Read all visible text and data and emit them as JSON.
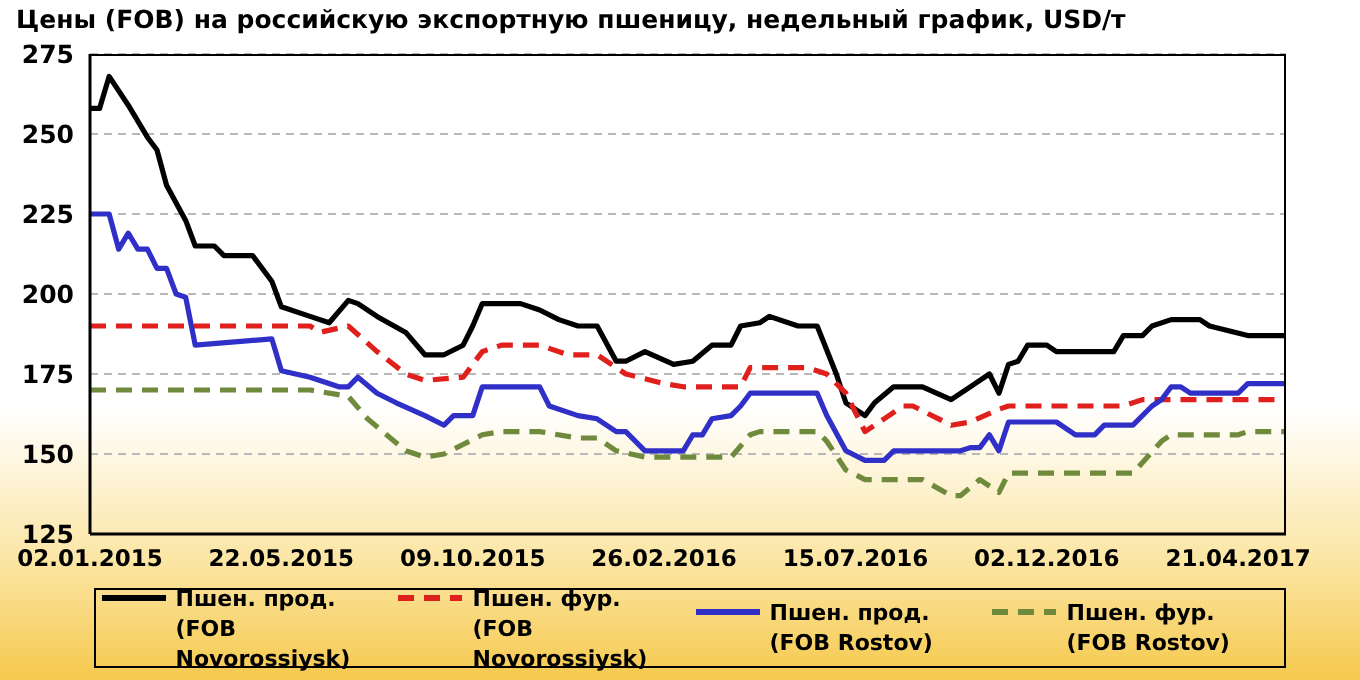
{
  "chart_data": {
    "type": "line",
    "title": "Цены (FOB) на российскую экспортную пшеницу, недельный график, USD/т",
    "xlim": [
      "2015-01-02",
      "2017-05-26"
    ],
    "xticks": [
      {
        "value": "2015-01-02",
        "label": "02.01.2015"
      },
      {
        "value": "2015-05-22",
        "label": "22.05.2015"
      },
      {
        "value": "2015-10-09",
        "label": "09.10.2015"
      },
      {
        "value": "2016-02-26",
        "label": "26.02.2016"
      },
      {
        "value": "2016-07-15",
        "label": "15.07.2016"
      },
      {
        "value": "2016-12-02",
        "label": "02.12.2016"
      },
      {
        "value": "2017-04-21",
        "label": "21.04.2017"
      }
    ],
    "ylim": [
      125,
      275
    ],
    "yticks": [
      125,
      150,
      175,
      200,
      225,
      250,
      275
    ],
    "grid": "y",
    "legend": "bottom",
    "marker": "none",
    "series": [
      {
        "name": "Пшен. прод. (FOB Novorossiysk)",
        "color": "#000000",
        "line_style": "solid",
        "x": [
          "2015-01-02",
          "2015-01-09",
          "2015-01-16",
          "2015-01-30",
          "2015-02-13",
          "2015-02-20",
          "2015-02-27",
          "2015-03-13",
          "2015-03-20",
          "2015-04-03",
          "2015-04-10",
          "2015-05-01",
          "2015-05-15",
          "2015-05-22",
          "2015-06-12",
          "2015-06-26",
          "2015-07-10",
          "2015-07-17",
          "2015-07-31",
          "2015-08-21",
          "2015-09-04",
          "2015-09-18",
          "2015-10-02",
          "2015-10-09",
          "2015-10-16",
          "2015-11-13",
          "2015-11-27",
          "2015-12-11",
          "2015-12-25",
          "2016-01-08",
          "2016-01-22",
          "2016-01-29",
          "2016-02-12",
          "2016-03-04",
          "2016-03-18",
          "2016-04-01",
          "2016-04-15",
          "2016-04-22",
          "2016-05-06",
          "2016-05-13",
          "2016-06-03",
          "2016-06-17",
          "2016-07-01",
          "2016-07-08",
          "2016-07-22",
          "2016-07-29",
          "2016-08-12",
          "2016-09-02",
          "2016-09-23",
          "2016-10-07",
          "2016-10-14",
          "2016-10-21",
          "2016-10-28",
          "2016-11-04",
          "2016-11-11",
          "2016-11-18",
          "2016-12-02",
          "2016-12-09",
          "2017-01-20",
          "2017-01-27",
          "2017-02-10",
          "2017-02-17",
          "2017-03-03",
          "2017-03-24",
          "2017-03-31",
          "2017-04-28",
          "2017-05-26"
        ],
        "values": [
          258,
          258,
          268,
          259,
          249,
          245,
          234,
          223,
          215,
          215,
          212,
          212,
          204,
          196,
          193,
          191,
          198,
          197,
          193,
          188,
          181,
          181,
          184,
          190,
          197,
          197,
          195,
          192,
          190,
          190,
          179,
          179,
          182,
          178,
          179,
          184,
          184,
          190,
          191,
          193,
          190,
          190,
          175,
          166,
          162,
          166,
          171,
          171,
          167,
          171,
          173,
          175,
          169,
          178,
          179,
          184,
          184,
          182,
          182,
          187,
          187,
          190,
          192,
          192,
          190,
          187,
          187
        ]
      },
      {
        "name": "Пшен. фур. (FOB Novorossiysk)",
        "color": "#e0201c",
        "line_style": "dashed",
        "x": [
          "2015-01-02",
          "2015-06-12",
          "2015-06-19",
          "2015-07-10",
          "2015-07-31",
          "2015-08-21",
          "2015-09-04",
          "2015-10-02",
          "2015-10-16",
          "2015-10-30",
          "2015-11-27",
          "2015-12-18",
          "2016-01-08",
          "2016-01-29",
          "2016-02-26",
          "2016-03-11",
          "2016-04-22",
          "2016-04-29",
          "2016-06-10",
          "2016-06-24",
          "2016-07-08",
          "2016-07-22",
          "2016-08-19",
          "2016-08-26",
          "2016-09-23",
          "2016-10-07",
          "2016-10-28",
          "2016-11-04",
          "2017-01-27",
          "2017-02-10",
          "2017-05-26"
        ],
        "values": [
          190,
          190,
          188,
          190,
          182,
          175,
          173,
          174,
          182,
          184,
          184,
          181,
          181,
          175,
          172,
          171,
          171,
          177,
          177,
          175,
          169,
          157,
          165,
          165,
          159,
          160,
          164,
          165,
          165,
          167,
          167
        ]
      },
      {
        "name": "Пшен. прод. (FOB Rostov)",
        "color": "#3030c8",
        "line_style": "solid",
        "x": [
          "2015-01-02",
          "2015-01-16",
          "2015-01-23",
          "2015-01-30",
          "2015-02-06",
          "2015-02-13",
          "2015-02-20",
          "2015-02-27",
          "2015-03-06",
          "2015-03-13",
          "2015-03-20",
          "2015-05-15",
          "2015-05-22",
          "2015-06-12",
          "2015-07-03",
          "2015-07-10",
          "2015-07-17",
          "2015-07-31",
          "2015-08-14",
          "2015-09-04",
          "2015-09-18",
          "2015-09-25",
          "2015-10-09",
          "2015-10-16",
          "2015-11-13",
          "2015-11-27",
          "2015-12-04",
          "2015-12-25",
          "2016-01-08",
          "2016-01-22",
          "2016-01-29",
          "2016-02-12",
          "2016-03-11",
          "2016-03-18",
          "2016-03-25",
          "2016-04-01",
          "2016-04-15",
          "2016-04-22",
          "2016-04-29",
          "2016-06-17",
          "2016-06-24",
          "2016-07-08",
          "2016-07-22",
          "2016-08-05",
          "2016-08-12",
          "2016-09-30",
          "2016-10-07",
          "2016-10-14",
          "2016-10-21",
          "2016-10-28",
          "2016-11-04",
          "2016-12-09",
          "2016-12-23",
          "2017-01-06",
          "2017-01-13",
          "2017-02-03",
          "2017-02-17",
          "2017-02-24",
          "2017-03-03",
          "2017-03-10",
          "2017-03-17",
          "2017-04-21",
          "2017-04-28",
          "2017-05-26"
        ],
        "values": [
          225,
          225,
          214,
          219,
          214,
          214,
          208,
          208,
          200,
          199,
          184,
          186,
          176,
          174,
          171,
          171,
          174,
          169,
          166,
          162,
          159,
          162,
          162,
          171,
          171,
          171,
          165,
          162,
          161,
          157,
          157,
          151,
          151,
          156,
          156,
          161,
          162,
          165,
          169,
          169,
          162,
          151,
          148,
          148,
          151,
          151,
          152,
          152,
          156,
          151,
          160,
          160,
          156,
          156,
          159,
          159,
          165,
          167,
          171,
          171,
          169,
          169,
          172,
          172
        ]
      },
      {
        "name": "Пшен. фур. (FOB Rostov)",
        "color": "#6f8a3c",
        "line_style": "dashed",
        "x": [
          "2015-01-02",
          "2015-06-12",
          "2015-07-10",
          "2015-07-24",
          "2015-08-21",
          "2015-09-04",
          "2015-09-18",
          "2015-10-16",
          "2015-10-30",
          "2015-11-27",
          "2015-12-25",
          "2016-01-08",
          "2016-01-22",
          "2016-02-12",
          "2016-04-15",
          "2016-04-29",
          "2016-05-06",
          "2016-06-17",
          "2016-06-24",
          "2016-07-08",
          "2016-07-22",
          "2016-09-02",
          "2016-09-23",
          "2016-09-30",
          "2016-10-14",
          "2016-10-28",
          "2016-11-04",
          "2017-02-03",
          "2017-02-24",
          "2017-03-03",
          "2017-04-21",
          "2017-04-28",
          "2017-05-26"
        ],
        "values": [
          170,
          170,
          168,
          161,
          151,
          149,
          150,
          156,
          157,
          157,
          155,
          155,
          151,
          149,
          149,
          156,
          157,
          157,
          154,
          145,
          142,
          142,
          137,
          137,
          142,
          138,
          144,
          144,
          154,
          156,
          156,
          157,
          157
        ]
      }
    ]
  }
}
